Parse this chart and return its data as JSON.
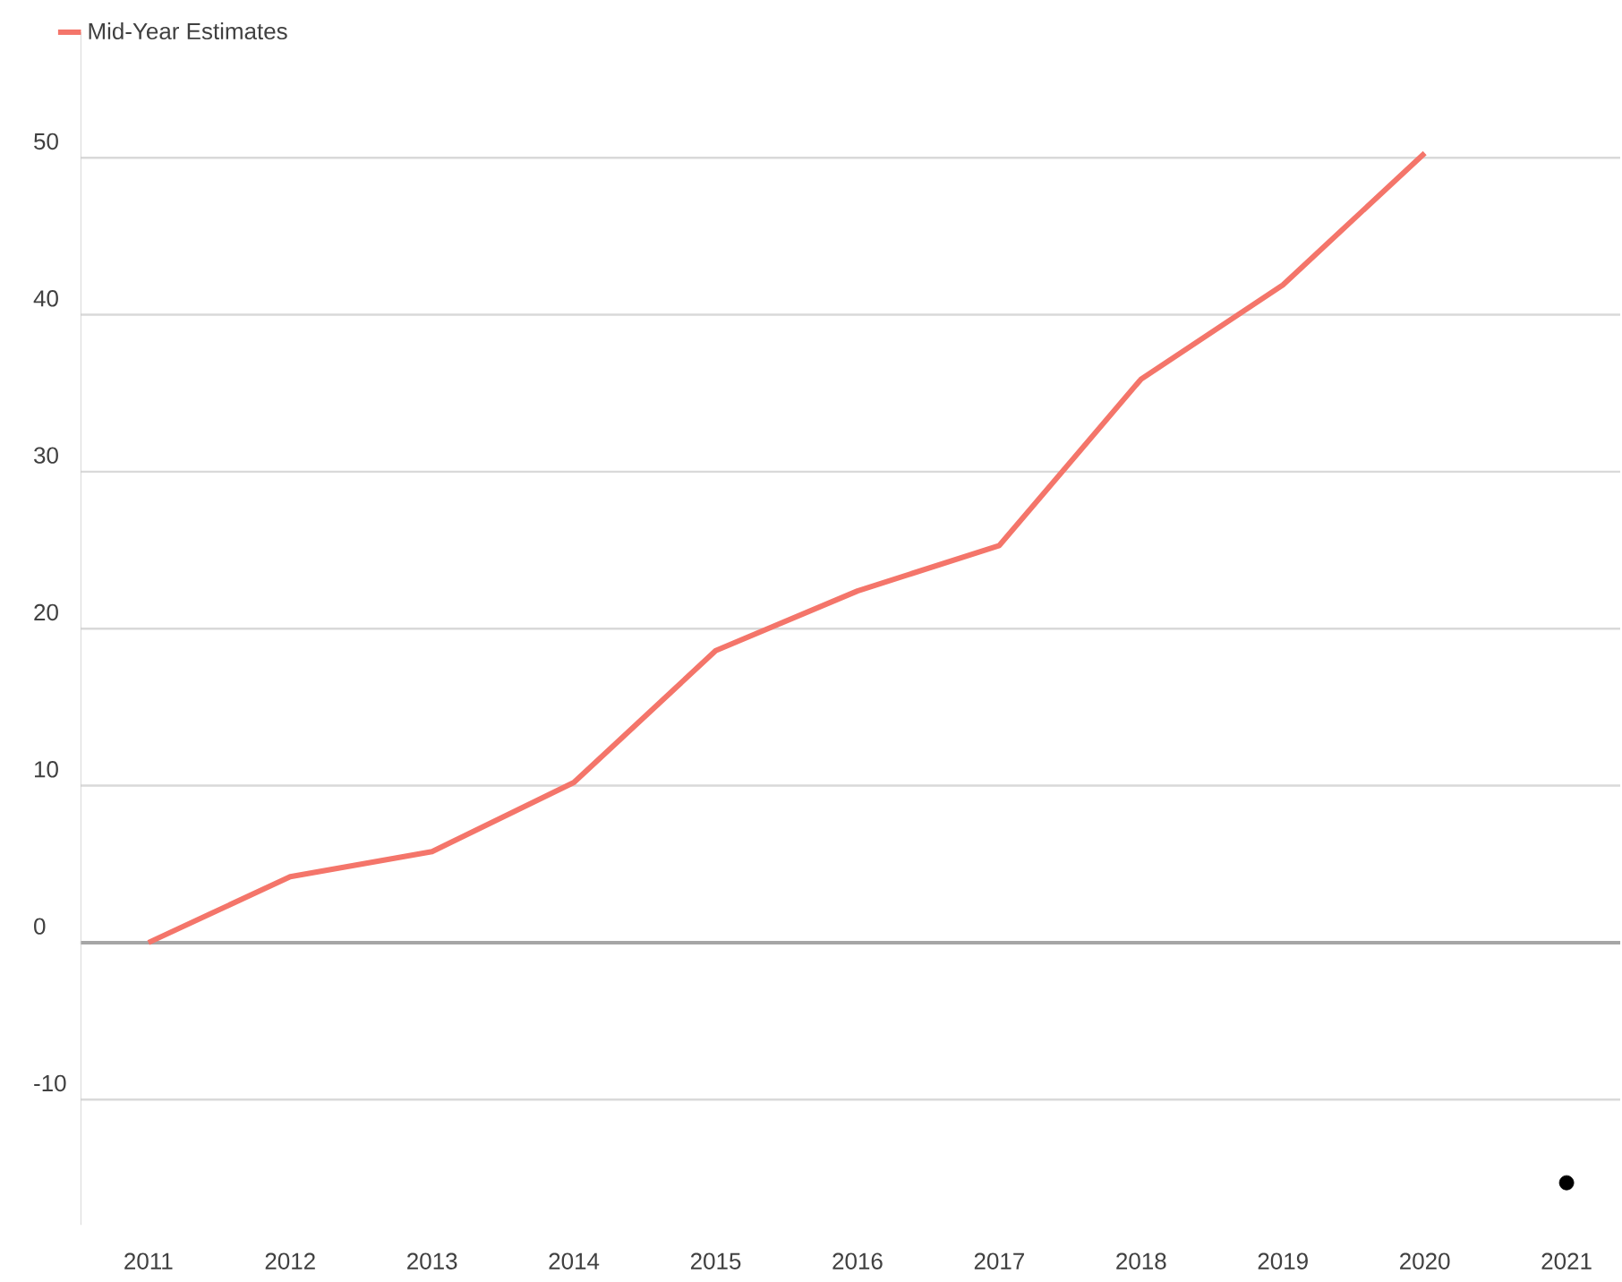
{
  "chart_data": {
    "type": "line",
    "categories": [
      "2011",
      "2012",
      "2013",
      "2014",
      "2015",
      "2016",
      "2017",
      "2018",
      "2019",
      "2020",
      "2021"
    ],
    "series": [
      {
        "name": "Mid-Year Estimates",
        "color": "#f4756a",
        "values": [
          0,
          4.2,
          5.8,
          10.2,
          18.6,
          22.4,
          25.3,
          35.9,
          41.9,
          50.3,
          null
        ]
      },
      {
        "type": "scatter",
        "color": "#000000",
        "values": [
          null,
          null,
          null,
          null,
          null,
          null,
          null,
          null,
          null,
          null,
          -15.3
        ]
      }
    ],
    "ylim": [
      -18,
      58
    ],
    "yticks": [
      -10,
      0,
      10,
      20,
      30,
      40,
      50
    ],
    "grid": "y",
    "legend": "top left"
  }
}
